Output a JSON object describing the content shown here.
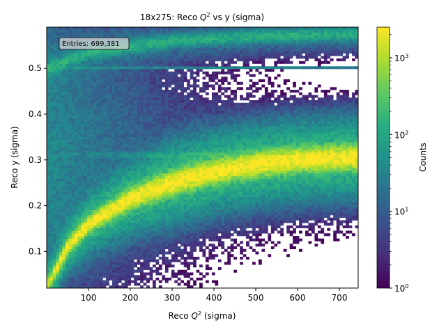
{
  "chart_data": {
    "type": "heatmap",
    "title": "18x275: Reco Q^2 vs y (sigma)",
    "title_parts": {
      "pre": "18x275: Reco ",
      "var": "Q",
      "sup": "2",
      "post": " vs y (sigma)"
    },
    "xlabel": "Reco Q^2 (sigma)",
    "xlabel_parts": {
      "pre": "Reco ",
      "var": "Q",
      "sup": "2",
      "post": " (sigma)"
    },
    "ylabel": "Reco y (sigma)",
    "xlim": [
      0,
      745
    ],
    "ylim": [
      0.02,
      0.59
    ],
    "x_ticks": [
      100,
      200,
      300,
      400,
      500,
      600,
      700
    ],
    "y_ticks": [
      0.1,
      0.2,
      0.3,
      0.4,
      0.5
    ],
    "y_tick_labels": [
      "0.1",
      "0.2",
      "0.3",
      "0.4",
      "0.5"
    ],
    "colorbar": {
      "label": "Counts",
      "scale": "log",
      "range": [
        1,
        2500
      ],
      "ticks": [
        {
          "value": 1,
          "base": "10",
          "exp": "0"
        },
        {
          "value": 10,
          "base": "10",
          "exp": "1"
        },
        {
          "value": 100,
          "base": "10",
          "exp": "2"
        },
        {
          "value": 1000,
          "base": "10",
          "exp": "3"
        }
      ],
      "colormap": "viridis"
    },
    "annotation": "Entries: 699,381",
    "bins": {
      "nx": 100,
      "ny": 100
    },
    "features": [
      {
        "name": "main band",
        "y_at_x": [
          [
            5,
            0.03
          ],
          [
            50,
            0.11
          ],
          [
            100,
            0.16
          ],
          [
            200,
            0.215
          ],
          [
            300,
            0.25
          ],
          [
            400,
            0.275
          ],
          [
            500,
            0.29
          ],
          [
            600,
            0.3
          ],
          [
            700,
            0.305
          ]
        ],
        "peak_counts": 2500
      },
      {
        "name": "upper band",
        "y_at_x": [
          [
            5,
            0.5
          ],
          [
            100,
            0.535
          ],
          [
            300,
            0.56
          ],
          [
            500,
            0.57
          ],
          [
            745,
            0.575
          ]
        ],
        "peak_counts": 120
      },
      {
        "name": "y=0.5 line",
        "y": 0.5,
        "peak_counts": 40
      },
      {
        "name": "y=0.31 line",
        "y": 0.31,
        "peak_counts": 60
      }
    ]
  }
}
